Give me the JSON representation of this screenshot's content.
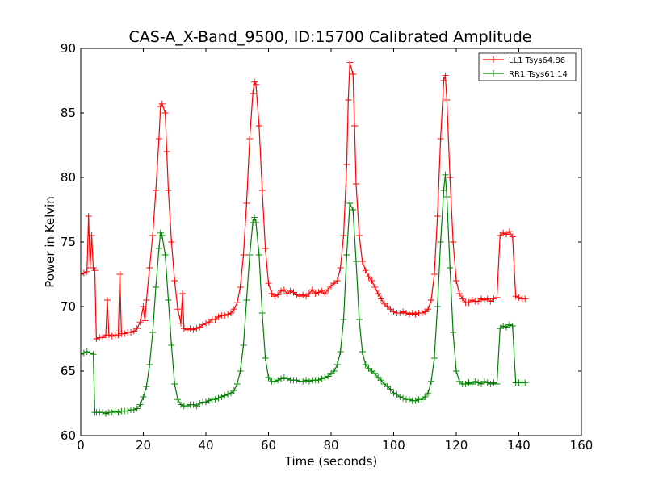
{
  "chart_data": {
    "type": "line",
    "title": "CAS-A_X-Band_9500, ID:15700 Calibrated Amplitude",
    "xlabel": "Time (seconds)",
    "ylabel": "Power in Kelvin",
    "xlim": [
      0,
      160
    ],
    "ylim": [
      60,
      90
    ],
    "xticks": [
      0,
      20,
      40,
      60,
      80,
      100,
      120,
      140,
      160
    ],
    "yticks": [
      60,
      65,
      70,
      75,
      80,
      85,
      90
    ],
    "xtick_labels": [
      "0",
      "20",
      "40",
      "60",
      "80",
      "100",
      "120",
      "140",
      "160"
    ],
    "ytick_labels": [
      "60",
      "65",
      "70",
      "75",
      "80",
      "85",
      "90"
    ],
    "grid": false,
    "legend_position": "top-right",
    "marker": "plus",
    "series": [
      {
        "name": "LL1 Tsys64.86",
        "color": "#ff0000",
        "points": [
          [
            0,
            72.5
          ],
          [
            1,
            72.6
          ],
          [
            2,
            72.7
          ],
          [
            2.5,
            77.0
          ],
          [
            3,
            73.0
          ],
          [
            3.5,
            75.5
          ],
          [
            4,
            73.0
          ],
          [
            4.5,
            72.8
          ],
          [
            5,
            67.5
          ],
          [
            6,
            67.6
          ],
          [
            7,
            67.6
          ],
          [
            8,
            67.8
          ],
          [
            8.5,
            70.5
          ],
          [
            9,
            67.8
          ],
          [
            10,
            67.7
          ],
          [
            11,
            67.8
          ],
          [
            12,
            67.8
          ],
          [
            12.5,
            72.5
          ],
          [
            13,
            67.9
          ],
          [
            14,
            67.9
          ],
          [
            15,
            68.0
          ],
          [
            16,
            68.0
          ],
          [
            17,
            68.1
          ],
          [
            18,
            68.3
          ],
          [
            19,
            68.8
          ],
          [
            20,
            70.0
          ],
          [
            20.5,
            68.9
          ],
          [
            21,
            70.5
          ],
          [
            22,
            73.0
          ],
          [
            23,
            75.5
          ],
          [
            24,
            79.0
          ],
          [
            25,
            83.0
          ],
          [
            25.5,
            85.5
          ],
          [
            26,
            85.7
          ],
          [
            27,
            85.0
          ],
          [
            27.5,
            82.0
          ],
          [
            28,
            79.0
          ],
          [
            29,
            75.0
          ],
          [
            30,
            72.0
          ],
          [
            31,
            69.8
          ],
          [
            32,
            68.7
          ],
          [
            32.5,
            71.0
          ],
          [
            33,
            68.3
          ],
          [
            34,
            68.2
          ],
          [
            35,
            68.3
          ],
          [
            36,
            68.2
          ],
          [
            37,
            68.3
          ],
          [
            38,
            68.4
          ],
          [
            39,
            68.6
          ],
          [
            40,
            68.7
          ],
          [
            41,
            68.8
          ],
          [
            42,
            69.0
          ],
          [
            43,
            69.0
          ],
          [
            44,
            69.2
          ],
          [
            45,
            69.3
          ],
          [
            46,
            69.3
          ],
          [
            47,
            69.4
          ],
          [
            48,
            69.5
          ],
          [
            49,
            69.8
          ],
          [
            50,
            70.3
          ],
          [
            51,
            71.5
          ],
          [
            52,
            74.0
          ],
          [
            53,
            78.0
          ],
          [
            54,
            83.0
          ],
          [
            55,
            86.5
          ],
          [
            55.5,
            87.4
          ],
          [
            56,
            87.2
          ],
          [
            57,
            84.0
          ],
          [
            58,
            79.0
          ],
          [
            59,
            74.5
          ],
          [
            60,
            71.8
          ],
          [
            61,
            71.0
          ],
          [
            62,
            70.8
          ],
          [
            63,
            70.9
          ],
          [
            64,
            71.2
          ],
          [
            65,
            71.3
          ],
          [
            66,
            71.0
          ],
          [
            67,
            71.2
          ],
          [
            68,
            71.1
          ],
          [
            69,
            70.9
          ],
          [
            70,
            70.8
          ],
          [
            71,
            70.9
          ],
          [
            72,
            70.8
          ],
          [
            73,
            71.0
          ],
          [
            74,
            71.3
          ],
          [
            75,
            71.0
          ],
          [
            76,
            71.1
          ],
          [
            77,
            71.2
          ],
          [
            78,
            71.0
          ],
          [
            79,
            71.3
          ],
          [
            80,
            71.6
          ],
          [
            81,
            71.8
          ],
          [
            82,
            72.0
          ],
          [
            83,
            73.0
          ],
          [
            84,
            75.5
          ],
          [
            85,
            81.0
          ],
          [
            85.5,
            86.0
          ],
          [
            86,
            88.9
          ],
          [
            87,
            88.0
          ],
          [
            87.5,
            84.0
          ],
          [
            88,
            79.5
          ],
          [
            89,
            75.5
          ],
          [
            90,
            73.5
          ],
          [
            91,
            72.8
          ],
          [
            92,
            72.3
          ],
          [
            93,
            72.0
          ],
          [
            94,
            71.5
          ],
          [
            95,
            71.0
          ],
          [
            96,
            70.6
          ],
          [
            97,
            70.2
          ],
          [
            98,
            70.0
          ],
          [
            99,
            69.8
          ],
          [
            100,
            69.6
          ],
          [
            101,
            69.5
          ],
          [
            102,
            69.5
          ],
          [
            103,
            69.6
          ],
          [
            104,
            69.5
          ],
          [
            105,
            69.4
          ],
          [
            106,
            69.5
          ],
          [
            107,
            69.4
          ],
          [
            108,
            69.5
          ],
          [
            109,
            69.5
          ],
          [
            110,
            69.6
          ],
          [
            111,
            69.8
          ],
          [
            112,
            70.5
          ],
          [
            113,
            72.5
          ],
          [
            114,
            77.0
          ],
          [
            115,
            83.0
          ],
          [
            116,
            87.5
          ],
          [
            116.5,
            87.9
          ],
          [
            117,
            86.0
          ],
          [
            118,
            80.0
          ],
          [
            119,
            75.0
          ],
          [
            120,
            72.0
          ],
          [
            121,
            71.0
          ],
          [
            122,
            70.6
          ],
          [
            123,
            70.3
          ],
          [
            124,
            70.3
          ],
          [
            125,
            70.5
          ],
          [
            126,
            70.4
          ],
          [
            127,
            70.4
          ],
          [
            128,
            70.6
          ],
          [
            129,
            70.5
          ],
          [
            130,
            70.6
          ],
          [
            131,
            70.4
          ],
          [
            132,
            70.6
          ],
          [
            133,
            70.7
          ],
          [
            134,
            75.5
          ],
          [
            135,
            75.7
          ],
          [
            136,
            75.6
          ],
          [
            137,
            75.8
          ],
          [
            138,
            75.4
          ],
          [
            139,
            70.8
          ],
          [
            140,
            70.7
          ],
          [
            141,
            70.6
          ],
          [
            142,
            70.6
          ]
        ]
      },
      {
        "name": "RR1 Tsys61.14",
        "color": "#008000",
        "points": [
          [
            0,
            66.3
          ],
          [
            1,
            66.4
          ],
          [
            2,
            66.5
          ],
          [
            3,
            66.4
          ],
          [
            4,
            66.3
          ],
          [
            4.5,
            61.8
          ],
          [
            5,
            61.8
          ],
          [
            6,
            61.8
          ],
          [
            7,
            61.8
          ],
          [
            8,
            61.7
          ],
          [
            9,
            61.8
          ],
          [
            10,
            61.8
          ],
          [
            11,
            61.9
          ],
          [
            12,
            61.8
          ],
          [
            13,
            61.9
          ],
          [
            14,
            61.9
          ],
          [
            15,
            61.9
          ],
          [
            16,
            62.0
          ],
          [
            17,
            62.0
          ],
          [
            18,
            62.1
          ],
          [
            19,
            62.4
          ],
          [
            20,
            63.0
          ],
          [
            21,
            63.8
          ],
          [
            22,
            65.5
          ],
          [
            23,
            68.0
          ],
          [
            24,
            71.5
          ],
          [
            25,
            74.5
          ],
          [
            25.5,
            75.7
          ],
          [
            26,
            75.5
          ],
          [
            27,
            74.0
          ],
          [
            28,
            70.5
          ],
          [
            29,
            67.0
          ],
          [
            30,
            64.0
          ],
          [
            31,
            62.8
          ],
          [
            32,
            62.4
          ],
          [
            33,
            62.3
          ],
          [
            34,
            62.3
          ],
          [
            35,
            62.4
          ],
          [
            36,
            62.4
          ],
          [
            37,
            62.3
          ],
          [
            38,
            62.5
          ],
          [
            39,
            62.6
          ],
          [
            40,
            62.6
          ],
          [
            41,
            62.7
          ],
          [
            42,
            62.8
          ],
          [
            43,
            62.8
          ],
          [
            44,
            62.9
          ],
          [
            45,
            63.0
          ],
          [
            46,
            63.1
          ],
          [
            47,
            63.2
          ],
          [
            48,
            63.3
          ],
          [
            49,
            63.5
          ],
          [
            50,
            64.0
          ],
          [
            51,
            65.0
          ],
          [
            52,
            67.0
          ],
          [
            53,
            70.5
          ],
          [
            54,
            74.0
          ],
          [
            55,
            76.5
          ],
          [
            55.5,
            76.9
          ],
          [
            56,
            76.5
          ],
          [
            57,
            74.0
          ],
          [
            58,
            69.5
          ],
          [
            59,
            66.0
          ],
          [
            60,
            64.5
          ],
          [
            61,
            64.2
          ],
          [
            62,
            64.2
          ],
          [
            63,
            64.3
          ],
          [
            64,
            64.4
          ],
          [
            65,
            64.5
          ],
          [
            66,
            64.4
          ],
          [
            67,
            64.3
          ],
          [
            68,
            64.3
          ],
          [
            69,
            64.3
          ],
          [
            70,
            64.2
          ],
          [
            71,
            64.2
          ],
          [
            72,
            64.3
          ],
          [
            73,
            64.2
          ],
          [
            74,
            64.3
          ],
          [
            75,
            64.3
          ],
          [
            76,
            64.3
          ],
          [
            77,
            64.4
          ],
          [
            78,
            64.5
          ],
          [
            79,
            64.6
          ],
          [
            80,
            64.8
          ],
          [
            81,
            65.0
          ],
          [
            82,
            65.5
          ],
          [
            83,
            66.5
          ],
          [
            84,
            69.0
          ],
          [
            85,
            74.0
          ],
          [
            86,
            78.0
          ],
          [
            87,
            77.5
          ],
          [
            88,
            73.5
          ],
          [
            89,
            69.0
          ],
          [
            90,
            66.5
          ],
          [
            91,
            65.5
          ],
          [
            92,
            65.2
          ],
          [
            93,
            65.0
          ],
          [
            94,
            64.8
          ],
          [
            95,
            64.5
          ],
          [
            96,
            64.3
          ],
          [
            97,
            64.0
          ],
          [
            98,
            63.8
          ],
          [
            99,
            63.6
          ],
          [
            100,
            63.3
          ],
          [
            101,
            63.2
          ],
          [
            102,
            63.0
          ],
          [
            103,
            62.9
          ],
          [
            104,
            62.8
          ],
          [
            105,
            62.8
          ],
          [
            106,
            62.7
          ],
          [
            107,
            62.7
          ],
          [
            108,
            62.8
          ],
          [
            109,
            62.8
          ],
          [
            110,
            63.0
          ],
          [
            111,
            63.3
          ],
          [
            112,
            64.2
          ],
          [
            113,
            66.0
          ],
          [
            114,
            70.0
          ],
          [
            115,
            75.0
          ],
          [
            116,
            79.0
          ],
          [
            116.5,
            80.2
          ],
          [
            117,
            78.5
          ],
          [
            118,
            73.0
          ],
          [
            119,
            68.0
          ],
          [
            120,
            65.0
          ],
          [
            121,
            64.2
          ],
          [
            122,
            64.0
          ],
          [
            123,
            64.0
          ],
          [
            124,
            64.1
          ],
          [
            125,
            64.0
          ],
          [
            126,
            64.2
          ],
          [
            127,
            64.1
          ],
          [
            128,
            64.0
          ],
          [
            129,
            64.2
          ],
          [
            130,
            64.1
          ],
          [
            131,
            64.0
          ],
          [
            132,
            64.1
          ],
          [
            133,
            64.0
          ],
          [
            134,
            68.3
          ],
          [
            135,
            68.5
          ],
          [
            136,
            68.4
          ],
          [
            137,
            68.6
          ],
          [
            138,
            68.5
          ],
          [
            139,
            64.1
          ],
          [
            140,
            64.1
          ],
          [
            141,
            64.1
          ],
          [
            142,
            64.1
          ]
        ]
      }
    ]
  }
}
